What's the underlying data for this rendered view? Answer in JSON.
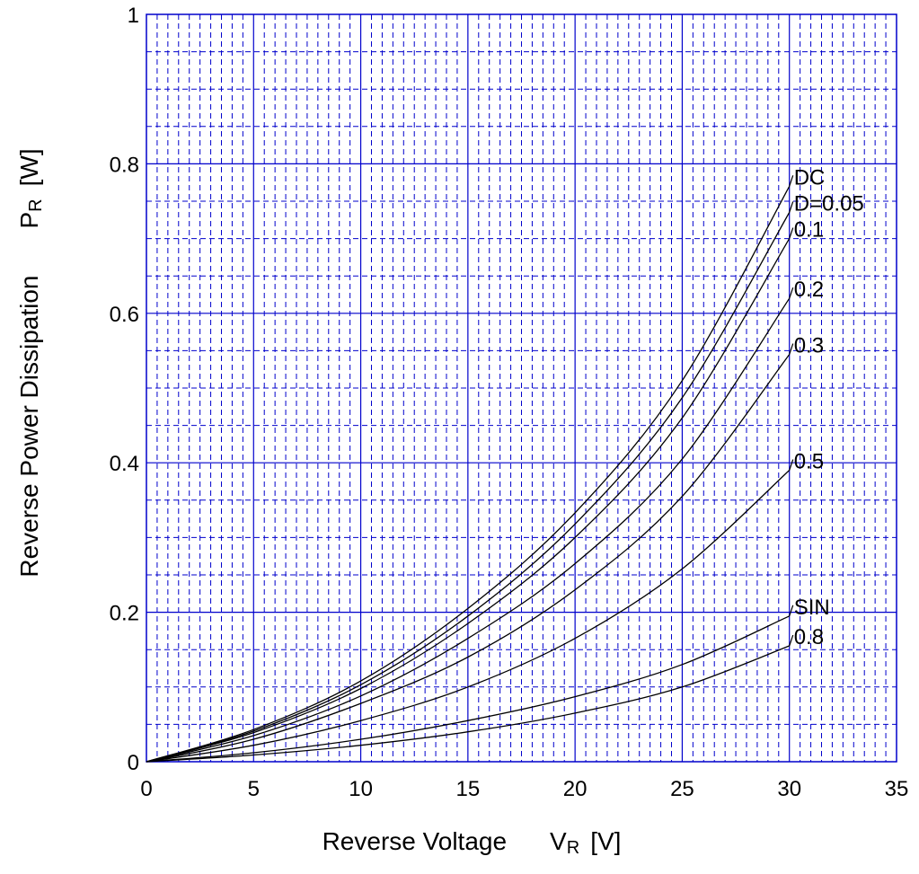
{
  "chart_data": {
    "type": "line",
    "title": "",
    "xlabel": "Reverse Voltage",
    "xlabel_symbol": "V",
    "xlabel_subscript": "R",
    "xlabel_unit": "[V]",
    "ylabel": "Reverse Power Dissipation",
    "ylabel_symbol": "P",
    "ylabel_subscript": "R",
    "ylabel_unit": "[W]",
    "xlim": [
      0,
      35
    ],
    "ylim": [
      0,
      1
    ],
    "xticks": [
      "0",
      "5",
      "10",
      "15",
      "20",
      "25",
      "30",
      "35"
    ],
    "yticks": [
      "0",
      "0.2",
      "0.4",
      "0.6",
      "0.8",
      "1"
    ],
    "grid": true,
    "colors": {
      "grid": "#0000cc",
      "curve": "#000000"
    },
    "series": [
      {
        "name": "DC",
        "x": [
          0,
          5,
          10,
          15,
          20,
          25,
          30
        ],
        "y": [
          0,
          0.043,
          0.108,
          0.205,
          0.333,
          0.51,
          0.77
        ]
      },
      {
        "name": "D=0.05",
        "x": [
          0,
          5,
          10,
          15,
          20,
          25,
          30
        ],
        "y": [
          0,
          0.041,
          0.103,
          0.195,
          0.318,
          0.487,
          0.735
        ]
      },
      {
        "name": "0.1",
        "x": [
          0,
          5,
          10,
          15,
          20,
          25,
          30
        ],
        "y": [
          0,
          0.039,
          0.098,
          0.185,
          0.3,
          0.46,
          0.7
        ]
      },
      {
        "name": "0.2",
        "x": [
          0,
          5,
          10,
          15,
          20,
          25,
          30
        ],
        "y": [
          0,
          0.035,
          0.088,
          0.165,
          0.265,
          0.405,
          0.62
        ]
      },
      {
        "name": "0.3",
        "x": [
          0,
          5,
          10,
          15,
          20,
          25,
          30
        ],
        "y": [
          0,
          0.03,
          0.078,
          0.14,
          0.23,
          0.355,
          0.545
        ]
      },
      {
        "name": "0.5",
        "x": [
          0,
          5,
          10,
          15,
          20,
          25,
          30
        ],
        "y": [
          0,
          0.022,
          0.055,
          0.1,
          0.165,
          0.258,
          0.39
        ]
      },
      {
        "name": "SIN",
        "x": [
          0,
          5,
          10,
          15,
          20,
          25,
          30
        ],
        "y": [
          0,
          0.012,
          0.03,
          0.055,
          0.087,
          0.13,
          0.195
        ]
      },
      {
        "name": "0.8",
        "x": [
          0,
          5,
          10,
          15,
          20,
          25,
          30
        ],
        "y": [
          0,
          0.009,
          0.022,
          0.04,
          0.065,
          0.1,
          0.155
        ]
      }
    ]
  }
}
